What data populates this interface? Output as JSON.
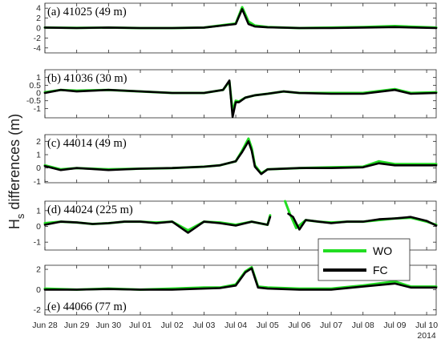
{
  "chart_data": {
    "type": "line",
    "ylabel": "H",
    "ylabel_sub": "s",
    "ylabel_rest": " differences (m)",
    "x_ticks": [
      "Jun 28",
      "Jun 29",
      "Jun 30",
      "Jul 01",
      "Jul 02",
      "Jul 03",
      "Jul 04",
      "Jul 05",
      "Jul 06",
      "Jul 07",
      "Jul 08",
      "Jul 09",
      "Jul 10"
    ],
    "x_year_label": "2014",
    "xlim": [
      0,
      12.3
    ],
    "legend": {
      "placement": "in panel (d), bottom-right",
      "entries": [
        {
          "name": "WO",
          "color": "#22dd22"
        },
        {
          "name": "FC",
          "color": "#000000"
        }
      ]
    },
    "panels": [
      {
        "title": "(a) 41025 (49 m)",
        "ylim": [
          -5,
          5
        ],
        "yticks": [
          "4",
          "2",
          "0",
          "-2",
          "-4"
        ],
        "ytick_values": [
          4,
          2,
          0,
          -2,
          -4
        ],
        "series": [
          {
            "name": "WO",
            "x": [
              0,
              1,
              2,
              3,
              4,
              5,
              6,
              6.2,
              6.4,
              6.6,
              7,
              8,
              9,
              10,
              11,
              12.3
            ],
            "y": [
              0.1,
              0.05,
              0.1,
              0,
              0,
              0.1,
              0.9,
              4.2,
              1.3,
              0.5,
              0.2,
              0,
              0.1,
              0.2,
              0.4,
              0.1
            ]
          },
          {
            "name": "FC",
            "x": [
              0,
              1,
              2,
              3,
              4,
              5,
              6,
              6.2,
              6.4,
              6.6,
              7,
              8,
              9,
              10,
              11,
              12.3
            ],
            "y": [
              0.1,
              0,
              0.1,
              0,
              0,
              0.1,
              0.8,
              3.8,
              0.8,
              0.3,
              0.15,
              0,
              0,
              0.1,
              0.2,
              0
            ]
          }
        ]
      },
      {
        "title": "(b) 41036 (30 m)",
        "ylim": [
          -1.6,
          1.5
        ],
        "yticks": [
          "1",
          "0.5",
          "0",
          "-0.5",
          "-1"
        ],
        "ytick_values": [
          1,
          0.5,
          0,
          -0.5,
          -1
        ],
        "series": [
          {
            "name": "WO",
            "x": [
              0,
              0.5,
              1,
              2,
              3,
              4,
              5,
              5.6,
              5.8,
              5.9,
              6.0,
              6.1,
              6.3,
              6.6,
              7,
              7.5,
              8,
              9,
              10,
              11,
              11.5,
              12.3
            ],
            "y": [
              0.05,
              0.2,
              0.15,
              0.2,
              0.1,
              0,
              0,
              0.2,
              0.75,
              -1.2,
              -0.5,
              -0.55,
              -0.3,
              -0.15,
              -0.05,
              0.1,
              0,
              0,
              0,
              0.25,
              0,
              0.05
            ]
          },
          {
            "name": "FC",
            "x": [
              0,
              0.5,
              1,
              2,
              3,
              4,
              5,
              5.6,
              5.8,
              5.9,
              6.0,
              6.1,
              6.3,
              6.6,
              7,
              7.5,
              8,
              9,
              10,
              11,
              11.5,
              12.3
            ],
            "y": [
              0,
              0.2,
              0.1,
              0.2,
              0.1,
              0,
              0,
              0.2,
              0.8,
              -1.55,
              -0.6,
              -0.6,
              -0.3,
              -0.15,
              -0.05,
              0.1,
              0,
              -0.05,
              -0.05,
              0.2,
              -0.05,
              0
            ]
          }
        ]
      },
      {
        "title": "(c) 44014 (49 m)",
        "ylim": [
          -1.1,
          2.5
        ],
        "yticks": [
          "2",
          "1",
          "0",
          "-1"
        ],
        "ytick_values": [
          2,
          1,
          0,
          -1
        ],
        "series": [
          {
            "name": "WO",
            "x": [
              0,
              0.5,
              1,
              2,
              3,
              4,
              5,
              5.5,
              6,
              6.2,
              6.4,
              6.5,
              6.6,
              6.8,
              7,
              8,
              9,
              10,
              10.5,
              11,
              12.3
            ],
            "y": [
              0.2,
              -0.1,
              0,
              -0.1,
              -0.05,
              0,
              0.1,
              0.2,
              0.5,
              1.3,
              2.2,
              1.5,
              0.2,
              -0.4,
              -0.1,
              0,
              0.05,
              0.1,
              0.5,
              0.3,
              0.3
            ]
          },
          {
            "name": "FC",
            "x": [
              0,
              0.5,
              1,
              2,
              3,
              4,
              5,
              5.5,
              6,
              6.2,
              6.4,
              6.5,
              6.6,
              6.8,
              7,
              8,
              9,
              10,
              10.5,
              11,
              12.3
            ],
            "y": [
              0.15,
              -0.15,
              0,
              -0.15,
              -0.05,
              0,
              0.1,
              0.2,
              0.5,
              1.2,
              2.0,
              1.3,
              0.1,
              -0.45,
              -0.1,
              0,
              0,
              0.05,
              0.35,
              0.2,
              0.2
            ]
          }
        ]
      },
      {
        "title": "(d) 44024 (225 m)",
        "ylim": [
          -1.5,
          1.6
        ],
        "yticks": [
          "1",
          "0",
          "-1"
        ],
        "ytick_values": [
          1,
          0,
          -1
        ],
        "series": [
          {
            "name": "WO",
            "x": [
              0,
              0.5,
              1,
              1.5,
              2,
              2.5,
              3,
              3.5,
              4,
              4.5,
              5,
              5.5,
              6,
              6.5,
              7,
              7.08,
              "gap",
              7.55,
              7.7,
              7.9,
              8.2,
              8.6,
              9,
              9.5,
              10,
              10.5,
              11,
              11.5,
              12,
              12.3
            ],
            "y": [
              0.2,
              0.3,
              0.25,
              0.15,
              0.2,
              0.3,
              0.3,
              0.25,
              0.3,
              -0.25,
              0.3,
              0.25,
              0.1,
              0.3,
              0.1,
              0.7,
              null,
              1.6,
              0.8,
              -0.1,
              0.4,
              0.3,
              0.25,
              0.3,
              0.3,
              0.4,
              0.5,
              0.55,
              0.3,
              0.1
            ]
          },
          {
            "name": "FC",
            "x": [
              0,
              0.5,
              1,
              1.5,
              2,
              2.5,
              3,
              3.5,
              4,
              4.5,
              5,
              5.5,
              6,
              6.5,
              7,
              7.08,
              "gap",
              7.65,
              7.8,
              8.0,
              8.2,
              8.6,
              9,
              9.5,
              10,
              10.5,
              11,
              11.5,
              12,
              12.3
            ],
            "y": [
              0.1,
              0.3,
              0.25,
              0.15,
              0.2,
              0.3,
              0.3,
              0.2,
              0.3,
              -0.4,
              0.3,
              0.2,
              0.05,
              0.3,
              0.1,
              0.6,
              null,
              0.8,
              0.6,
              -0.2,
              0.4,
              0.3,
              0.2,
              0.3,
              0.3,
              0.45,
              0.5,
              0.6,
              0.35,
              0.05
            ]
          }
        ]
      },
      {
        "title": "(e) 44066 (77 m)",
        "ylim": [
          -2.5,
          2.4
        ],
        "yticks": [
          "2",
          "0",
          "-2"
        ],
        "ytick_values": [
          2,
          0,
          -2
        ],
        "series": [
          {
            "name": "WO",
            "x": [
              0,
              1,
              2,
              3,
              4,
              5,
              5.5,
              6,
              6.3,
              6.5,
              6.7,
              7,
              8,
              9,
              10,
              11,
              11.5,
              12.3
            ],
            "y": [
              0.1,
              0,
              0.1,
              0,
              0.1,
              0.2,
              0.2,
              0.5,
              1.8,
              2.2,
              0.3,
              0.2,
              0.1,
              0.1,
              0.4,
              0.8,
              0.3,
              0.3
            ]
          },
          {
            "name": "FC",
            "x": [
              0,
              1,
              2,
              3,
              4,
              5,
              5.5,
              6,
              6.3,
              6.5,
              6.7,
              7,
              8,
              9,
              10,
              11,
              11.5,
              12.3
            ],
            "y": [
              0,
              0,
              0.05,
              0,
              0,
              0.1,
              0.15,
              0.4,
              1.7,
              2.1,
              0.2,
              0.1,
              0,
              0,
              0.3,
              0.6,
              0.2,
              0.2
            ]
          }
        ]
      }
    ]
  }
}
